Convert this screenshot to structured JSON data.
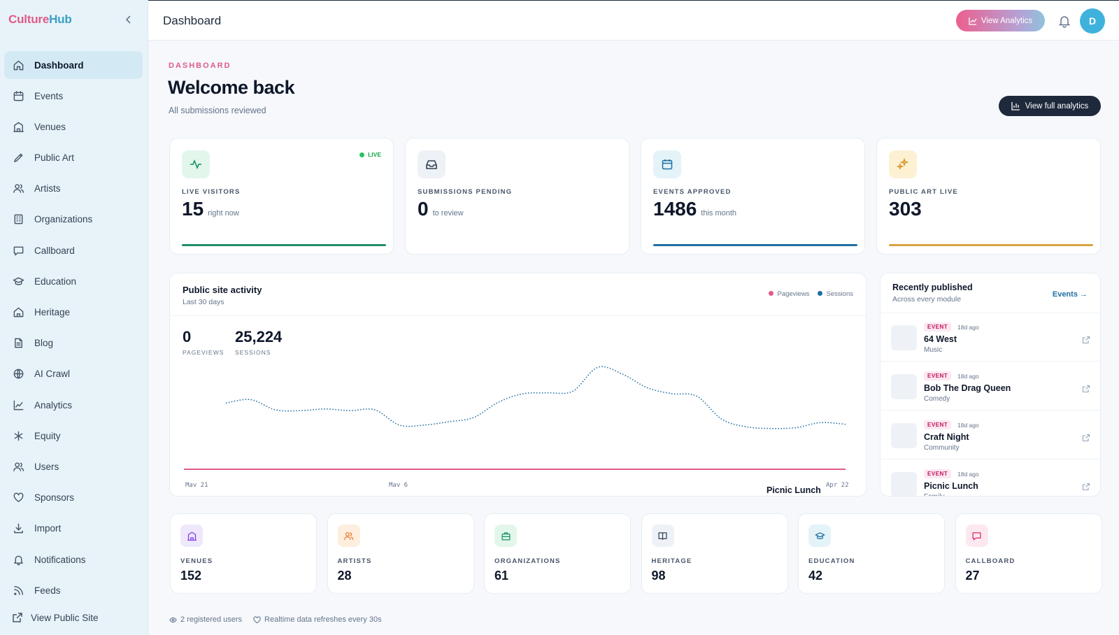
{
  "brand": {
    "part1": "Culture",
    "part2": "Hub"
  },
  "sidebar": {
    "items": [
      {
        "label": "Dashboard",
        "icon": "home-icon"
      },
      {
        "label": "Events",
        "icon": "calendar-icon"
      },
      {
        "label": "Venues",
        "icon": "building-icon"
      },
      {
        "label": "Public Art",
        "icon": "brush-icon"
      },
      {
        "label": "Artists",
        "icon": "users-icon"
      },
      {
        "label": "Organizations",
        "icon": "office-icon"
      },
      {
        "label": "Callboard",
        "icon": "message-icon"
      },
      {
        "label": "Education",
        "icon": "graduation-cap-icon"
      },
      {
        "label": "Heritage",
        "icon": "landmark-icon"
      },
      {
        "label": "Blog",
        "icon": "document-icon"
      },
      {
        "label": "AI Crawl",
        "icon": "globe-icon"
      },
      {
        "label": "Analytics",
        "icon": "line-chart-icon"
      },
      {
        "label": "Equity",
        "icon": "asterisk-icon"
      },
      {
        "label": "Users",
        "icon": "users-icon"
      },
      {
        "label": "Sponsors",
        "icon": "heart-icon"
      },
      {
        "label": "Import",
        "icon": "download-icon"
      },
      {
        "label": "Notifications",
        "icon": "bell-icon"
      },
      {
        "label": "Feeds",
        "icon": "rss-icon"
      }
    ],
    "public_site": "View Public Site"
  },
  "topbar": {
    "title": "Dashboard",
    "analytics_button": "View Analytics",
    "avatar_initial": "D"
  },
  "header": {
    "eyebrow": "DASHBOARD",
    "title": "Welcome back",
    "subtitle": "All submissions reviewed",
    "full_analytics_button": "View full analytics"
  },
  "stats": [
    {
      "label": "LIVE VISITORS",
      "value": "15",
      "suffix": "right now",
      "badge": "LIVE",
      "accent": "#1f8f6a",
      "icon": "activity-icon"
    },
    {
      "label": "SUBMISSIONS PENDING",
      "value": "0",
      "suffix": "to review",
      "accent": "#475569",
      "icon": "inbox-icon"
    },
    {
      "label": "EVENTS APPROVED",
      "value": "1486",
      "suffix": "this month",
      "accent": "#1e6fa3",
      "icon": "calendar-icon"
    },
    {
      "label": "PUBLIC ART LIVE",
      "value": "303",
      "suffix": "",
      "accent": "#d9a441",
      "icon": "sparkle-icon"
    }
  ],
  "activity": {
    "title": "Public site activity",
    "subtitle": "Last 30 days",
    "legend": [
      "Pageviews",
      "Sessions"
    ],
    "pageviews_total": "0",
    "pageviews_caption": "PAGEVIEWS",
    "sessions_total": "25,224",
    "sessions_caption": "SESSIONS",
    "x_ticks": [
      "Mav 21",
      "Mav 6",
      "Apr 22"
    ],
    "overlap_text": "Picnic Lunch",
    "colors": {
      "pageviews": "#e05a8a",
      "sessions": "#1e6fa3"
    }
  },
  "chart_data": {
    "type": "line",
    "series": [
      {
        "name": "Sessions",
        "values": [
          780,
          820,
          700,
          690,
          710,
          690,
          700,
          520,
          520,
          560,
          610,
          790,
          890,
          900,
          920,
          1200,
          1120,
          960,
          890,
          860,
          590,
          500,
          480,
          490,
          550,
          530
        ]
      },
      {
        "name": "Pageviews",
        "values": [
          0,
          0,
          0,
          0,
          0,
          0,
          0,
          0,
          0,
          0,
          0,
          0,
          0,
          0,
          0,
          0,
          0,
          0,
          0,
          0,
          0,
          0,
          0,
          0,
          0,
          0
        ]
      }
    ],
    "ylim": [
      0,
      1400
    ]
  },
  "recent": {
    "title": "Recently published",
    "subtitle": "Across every module",
    "link": "Events →",
    "items": [
      {
        "tag": "EVENT",
        "ago": "18d ago",
        "name": "64 West",
        "category": "Music"
      },
      {
        "tag": "EVENT",
        "ago": "18d ago",
        "name": "Bob The Drag Queen",
        "category": "Comedy"
      },
      {
        "tag": "EVENT",
        "ago": "18d ago",
        "name": "Craft Night",
        "category": "Community"
      },
      {
        "tag": "EVENT",
        "ago": "18d ago",
        "name": "Picnic Lunch",
        "category": "Family"
      }
    ]
  },
  "modules": [
    {
      "label": "VENUES",
      "value": "152",
      "icon": "building-icon",
      "bg": "#efe7fb",
      "fg": "#7c3aed"
    },
    {
      "label": "ARTISTS",
      "value": "28",
      "icon": "users-icon",
      "bg": "#fdeede",
      "fg": "#ea7a2c"
    },
    {
      "label": "ORGANIZATIONS",
      "value": "61",
      "icon": "briefcase-icon",
      "bg": "#e3f6ec",
      "fg": "#15935f"
    },
    {
      "label": "HERITAGE",
      "value": "98",
      "icon": "book-icon",
      "bg": "#eef2f6",
      "fg": "#334155"
    },
    {
      "label": "EDUCATION",
      "value": "42",
      "icon": "graduation-cap-icon",
      "bg": "#e4f3f8",
      "fg": "#1e6fa3"
    },
    {
      "label": "CALLBOARD",
      "value": "27",
      "icon": "message-icon",
      "bg": "#fde8ef",
      "fg": "#db2777"
    }
  ],
  "footer": {
    "users": "2 registered users",
    "refresh": "Realtime data refreshes every 30s"
  }
}
